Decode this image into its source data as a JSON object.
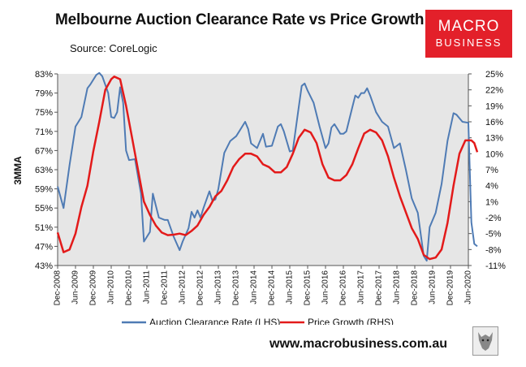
{
  "header": {
    "title": "Melbourne Auction Clearance Rate vs Price Growth",
    "source": "Source: CoreLogic"
  },
  "logo": {
    "line1": "MACRO",
    "line2": "BUSINESS"
  },
  "footer": {
    "website": "www.macrobusiness.com.au"
  },
  "colors": {
    "clearance": "#4f7bb4",
    "growth": "#e31a1a",
    "plot_bg": "#e6e6e6",
    "logo_bg": "#e3202a"
  },
  "icons": {
    "badge": "wolf-emblem-icon"
  },
  "chart_data": {
    "type": "line",
    "title": "Melbourne Auction Clearance Rate vs Price Growth",
    "ylabel": "3MMA",
    "x_start": "2008-12",
    "x_end": "2020-06",
    "x_tick_labels": [
      "Dec-2008",
      "Jun-2009",
      "Dec-2009",
      "Jun-2010",
      "Dec-2010",
      "Jun-2011",
      "Dec-2011",
      "Jun-2012",
      "Dec-2012",
      "Jun-2013",
      "Dec-2013",
      "Jun-2014",
      "Dec-2014",
      "Jun-2015",
      "Dec-2015",
      "Jun-2016",
      "Dec-2016",
      "Jun-2017",
      "Dec-2017",
      "Jun-2018",
      "Dec-2018",
      "Jun-2019",
      "Dec-2019",
      "Jun-2020"
    ],
    "y_left": {
      "min": 43,
      "max": 83,
      "ticks": [
        43,
        47,
        51,
        55,
        59,
        63,
        67,
        71,
        75,
        79,
        83
      ],
      "tick_labels": [
        "43%",
        "47%",
        "51%",
        "55%",
        "59%",
        "63%",
        "67%",
        "71%",
        "75%",
        "79%",
        "83%"
      ]
    },
    "y_right": {
      "min": -11,
      "max": 25,
      "ticks": [
        -11,
        -8,
        -5,
        -2,
        1,
        4,
        7,
        10,
        13,
        16,
        19,
        22,
        25
      ],
      "tick_labels": [
        "-11%",
        "-8%",
        "-5%",
        "-2%",
        "1%",
        "4%",
        "7%",
        "10%",
        "13%",
        "16%",
        "19%",
        "22%",
        "25%"
      ]
    },
    "series": [
      {
        "name": "Auction Clearance Rate (LHS)",
        "axis": "left",
        "color": "#4f7bb4",
        "points": [
          [
            "2008-12",
            59.5
          ],
          [
            "2009-02",
            55
          ],
          [
            "2009-04",
            64
          ],
          [
            "2009-06",
            72
          ],
          [
            "2009-08",
            74
          ],
          [
            "2009-10",
            80
          ],
          [
            "2009-11",
            80.8
          ],
          [
            "2010-01",
            82.8
          ],
          [
            "2010-02",
            83.2
          ],
          [
            "2010-03",
            82.5
          ],
          [
            "2010-05",
            79
          ],
          [
            "2010-06",
            74
          ],
          [
            "2010-07",
            73.8
          ],
          [
            "2010-08",
            75
          ],
          [
            "2010-09",
            80.2
          ],
          [
            "2010-10",
            77
          ],
          [
            "2010-11",
            67
          ],
          [
            "2010-12",
            65
          ],
          [
            "2011-02",
            65.2
          ],
          [
            "2011-04",
            58
          ],
          [
            "2011-05",
            48
          ],
          [
            "2011-07",
            50
          ],
          [
            "2011-08",
            58
          ],
          [
            "2011-10",
            53
          ],
          [
            "2011-12",
            52.5
          ],
          [
            "2012-01",
            52.5
          ],
          [
            "2012-03",
            49
          ],
          [
            "2012-05",
            46.2
          ],
          [
            "2012-06",
            48
          ],
          [
            "2012-08",
            50.8
          ],
          [
            "2012-09",
            54.2
          ],
          [
            "2012-10",
            53
          ],
          [
            "2012-11",
            54.5
          ],
          [
            "2012-12",
            53
          ],
          [
            "2013-01",
            55
          ],
          [
            "2013-03",
            58.5
          ],
          [
            "2013-04",
            56.5
          ],
          [
            "2013-05",
            56.8
          ],
          [
            "2013-06",
            59
          ],
          [
            "2013-08",
            66.5
          ],
          [
            "2013-10",
            69
          ],
          [
            "2013-12",
            70
          ],
          [
            "2014-01",
            71
          ],
          [
            "2014-03",
            73
          ],
          [
            "2014-04",
            71.5
          ],
          [
            "2014-05",
            68.5
          ],
          [
            "2014-07",
            67.5
          ],
          [
            "2014-09",
            70.5
          ],
          [
            "2014-10",
            67.8
          ],
          [
            "2014-12",
            68
          ],
          [
            "2015-02",
            72
          ],
          [
            "2015-03",
            72.5
          ],
          [
            "2015-04",
            71
          ],
          [
            "2015-06",
            66.8
          ],
          [
            "2015-07",
            67
          ],
          [
            "2015-09",
            76
          ],
          [
            "2015-10",
            80.5
          ],
          [
            "2015-11",
            81
          ],
          [
            "2015-12",
            79.5
          ],
          [
            "2016-02",
            77
          ],
          [
            "2016-04",
            72
          ],
          [
            "2016-06",
            67.5
          ],
          [
            "2016-07",
            68.5
          ],
          [
            "2016-08",
            71.8
          ],
          [
            "2016-09",
            72.5
          ],
          [
            "2016-10",
            71.5
          ],
          [
            "2016-11",
            70.5
          ],
          [
            "2016-12",
            70.5
          ],
          [
            "2017-01",
            71
          ],
          [
            "2017-03",
            76
          ],
          [
            "2017-04",
            78.5
          ],
          [
            "2017-05",
            78
          ],
          [
            "2017-06",
            79
          ],
          [
            "2017-07",
            79
          ],
          [
            "2017-08",
            80
          ],
          [
            "2017-09",
            78.5
          ],
          [
            "2017-11",
            75
          ],
          [
            "2018-01",
            73
          ],
          [
            "2018-03",
            72
          ],
          [
            "2018-05",
            67.5
          ],
          [
            "2018-07",
            68.5
          ],
          [
            "2018-09",
            63
          ],
          [
            "2018-11",
            57
          ],
          [
            "2019-01",
            54
          ],
          [
            "2019-03",
            45
          ],
          [
            "2019-04",
            44
          ],
          [
            "2019-05",
            51
          ],
          [
            "2019-07",
            54
          ],
          [
            "2019-09",
            60
          ],
          [
            "2019-11",
            69
          ],
          [
            "2020-01",
            74.8
          ],
          [
            "2020-02",
            74.5
          ],
          [
            "2020-04",
            73
          ],
          [
            "2020-06",
            72.8
          ],
          [
            "2020-07",
            52
          ],
          [
            "2020-08",
            47.5
          ],
          [
            "2020-09",
            47
          ]
        ]
      },
      {
        "name": "Price Growth (RHS)",
        "axis": "right",
        "color": "#e31a1a",
        "points": [
          [
            "2008-12",
            -4.8
          ],
          [
            "2009-02",
            -8.5
          ],
          [
            "2009-04",
            -8
          ],
          [
            "2009-06",
            -5
          ],
          [
            "2009-08",
            0
          ],
          [
            "2009-10",
            4
          ],
          [
            "2009-12",
            10.5
          ],
          [
            "2010-02",
            16
          ],
          [
            "2010-04",
            22
          ],
          [
            "2010-06",
            24
          ],
          [
            "2010-07",
            24.5
          ],
          [
            "2010-09",
            24
          ],
          [
            "2010-11",
            19
          ],
          [
            "2011-01",
            13
          ],
          [
            "2011-03",
            7
          ],
          [
            "2011-05",
            1
          ],
          [
            "2011-07",
            -1.5
          ],
          [
            "2011-09",
            -3.5
          ],
          [
            "2011-11",
            -4.8
          ],
          [
            "2012-01",
            -5.3
          ],
          [
            "2012-03",
            -5.2
          ],
          [
            "2012-05",
            -5
          ],
          [
            "2012-07",
            -5.3
          ],
          [
            "2012-09",
            -4.5
          ],
          [
            "2012-11",
            -3.5
          ],
          [
            "2013-01",
            -1.5
          ],
          [
            "2013-03",
            0
          ],
          [
            "2013-05",
            2
          ],
          [
            "2013-07",
            3
          ],
          [
            "2013-09",
            5
          ],
          [
            "2013-11",
            7.5
          ],
          [
            "2014-01",
            9
          ],
          [
            "2014-03",
            10
          ],
          [
            "2014-05",
            10
          ],
          [
            "2014-07",
            9.5
          ],
          [
            "2014-09",
            8
          ],
          [
            "2014-11",
            7.5
          ],
          [
            "2015-01",
            6.5
          ],
          [
            "2015-03",
            6.5
          ],
          [
            "2015-05",
            7.5
          ],
          [
            "2015-07",
            10
          ],
          [
            "2015-09",
            13
          ],
          [
            "2015-11",
            14.5
          ],
          [
            "2016-01",
            14
          ],
          [
            "2016-03",
            12
          ],
          [
            "2016-05",
            8
          ],
          [
            "2016-07",
            5.5
          ],
          [
            "2016-09",
            5
          ],
          [
            "2016-11",
            5
          ],
          [
            "2017-01",
            6
          ],
          [
            "2017-03",
            8
          ],
          [
            "2017-05",
            11
          ],
          [
            "2017-07",
            13.8
          ],
          [
            "2017-09",
            14.5
          ],
          [
            "2017-11",
            14
          ],
          [
            "2018-01",
            12.5
          ],
          [
            "2018-03",
            9.5
          ],
          [
            "2018-05",
            5.5
          ],
          [
            "2018-07",
            2
          ],
          [
            "2018-09",
            -1
          ],
          [
            "2018-11",
            -4
          ],
          [
            "2019-01",
            -6
          ],
          [
            "2019-03",
            -9
          ],
          [
            "2019-05",
            -9.8
          ],
          [
            "2019-07",
            -9.5
          ],
          [
            "2019-09",
            -8
          ],
          [
            "2019-11",
            -3
          ],
          [
            "2020-01",
            4
          ],
          [
            "2020-03",
            10
          ],
          [
            "2020-05",
            12.5
          ],
          [
            "2020-07",
            12.5
          ],
          [
            "2020-08",
            12
          ],
          [
            "2020-09",
            10.3
          ]
        ]
      }
    ]
  }
}
